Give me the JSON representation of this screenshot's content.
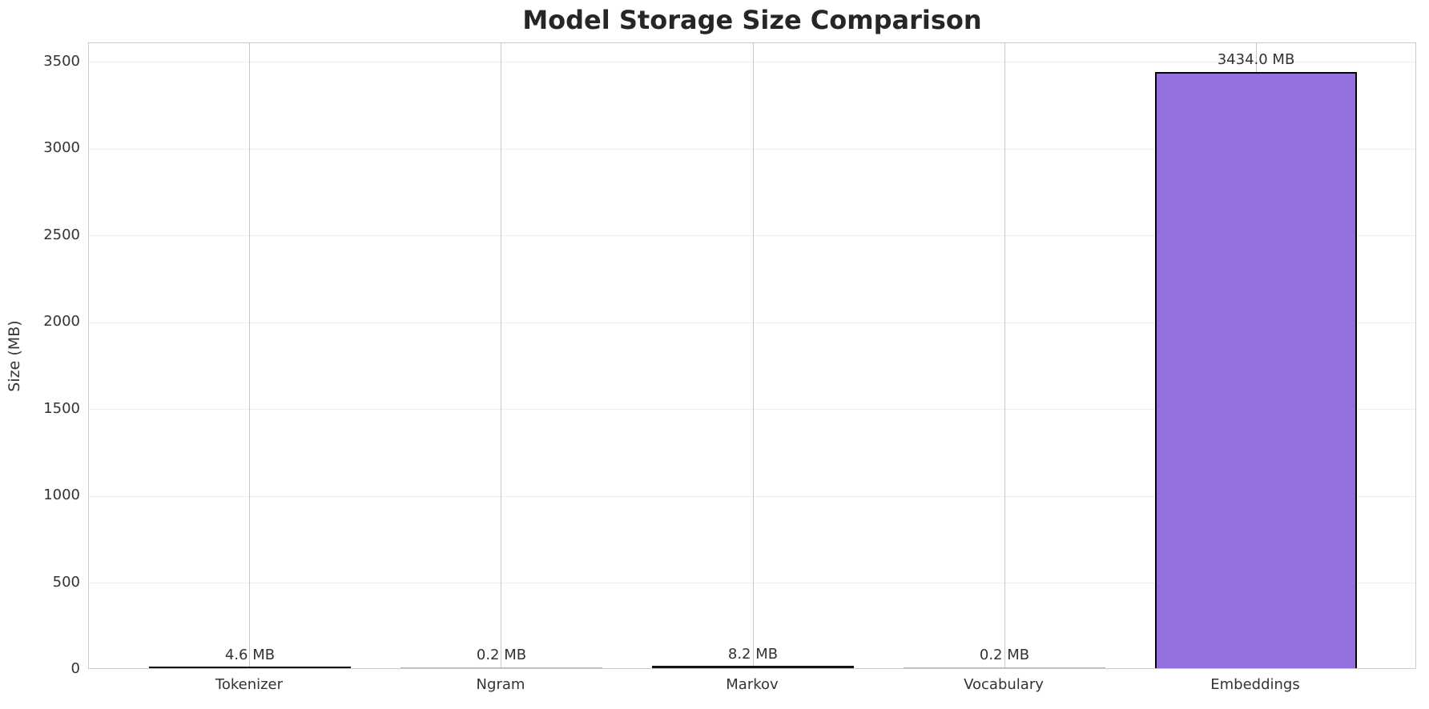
{
  "title": "Model Storage Size Comparison",
  "chart_data": {
    "type": "bar",
    "title": "Model Storage Size Comparison",
    "xlabel": "",
    "ylabel": "Size (MB)",
    "categories": [
      "Tokenizer",
      "Ngram",
      "Markov",
      "Vocabulary",
      "Embeddings"
    ],
    "values": [
      4.6,
      0.2,
      8.2,
      0.2,
      3434.0
    ],
    "bar_labels": [
      "4.6 MB",
      "0.2 MB",
      "8.2 MB",
      "0.2 MB",
      "3434.0 MB"
    ],
    "unit": "MB",
    "yticks": [
      0,
      500,
      1000,
      1500,
      2000,
      2500,
      3000,
      3500
    ],
    "ylim": [
      0,
      3610
    ],
    "grid": "both",
    "legend_position": "none",
    "colors": {
      "bar_fill": "#9370DB",
      "bar_edge": "#000000",
      "tiny_bar_dark": "#141414",
      "tiny_bar_hairline": "#b3b3b3",
      "grid_vertical": "#c9c9c9",
      "grid_horizontal": "#eeeeee",
      "spine": "#cccccc",
      "text": "#333333",
      "title_text": "#262626",
      "background": "#ffffff"
    }
  }
}
